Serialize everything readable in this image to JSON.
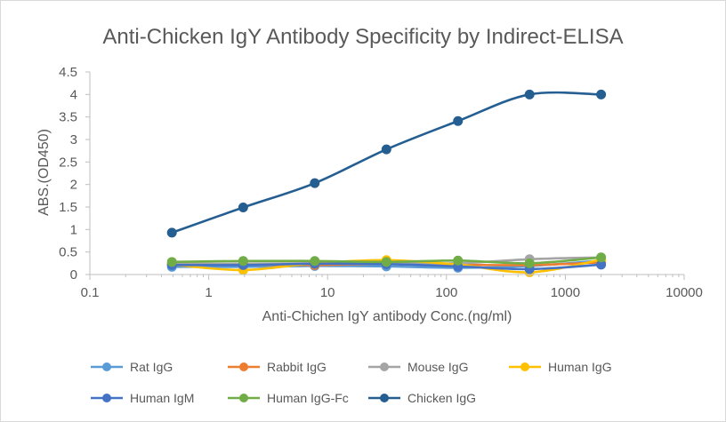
{
  "chart_data": {
    "type": "line",
    "title": "Anti-Chicken IgY Antibody Specificity by Indirect-ELISA",
    "xlabel": "Anti-Chichen IgY antibody Conc.(ng/ml)",
    "ylabel": "ABS.(OD450)",
    "xscale": "log",
    "xlim": [
      0.1,
      10000
    ],
    "ylim": [
      0,
      4.5
    ],
    "x_ticks": [
      0.1,
      1,
      10,
      100,
      1000,
      10000
    ],
    "x_tick_labels": [
      "0.1",
      "1",
      "10",
      "100",
      "1000",
      "10000"
    ],
    "y_ticks": [
      0,
      0.5,
      1,
      1.5,
      2,
      2.5,
      3,
      3.5,
      4,
      4.5
    ],
    "y_tick_labels": [
      "0",
      "0.5",
      "1",
      "1.5",
      "2",
      "2.5",
      "3",
      "3.5",
      "4",
      "4.5"
    ],
    "legend_position": "bottom",
    "x": [
      0.49,
      1.95,
      7.8,
      31.25,
      125,
      500,
      2000
    ],
    "series": [
      {
        "name": "Rat IgG",
        "color": "#5b9bd5",
        "values": [
          0.17,
          0.17,
          0.19,
          0.18,
          0.15,
          0.19,
          0.31
        ]
      },
      {
        "name": "Rabbit IgG",
        "color": "#ed7d31",
        "values": [
          0.22,
          0.22,
          0.21,
          0.24,
          0.22,
          0.21,
          0.27
        ]
      },
      {
        "name": "Mouse IgG",
        "color": "#a5a5a5",
        "values": [
          0.24,
          0.24,
          0.25,
          0.25,
          0.25,
          0.34,
          0.38
        ]
      },
      {
        "name": "Human IgG",
        "color": "#ffc000",
        "values": [
          0.22,
          0.1,
          0.25,
          0.32,
          0.22,
          0.05,
          0.33
        ]
      },
      {
        "name": "Human IgM",
        "color": "#4472c4",
        "values": [
          0.21,
          0.21,
          0.24,
          0.23,
          0.18,
          0.12,
          0.22
        ]
      },
      {
        "name": "Human IgG-Fc",
        "color": "#70ad47",
        "values": [
          0.28,
          0.3,
          0.3,
          0.28,
          0.31,
          0.25,
          0.38
        ]
      },
      {
        "name": "Chicken IgG",
        "color": "#255e91",
        "values": [
          0.93,
          1.49,
          2.03,
          2.78,
          3.41,
          4.0,
          4.0
        ]
      }
    ]
  }
}
